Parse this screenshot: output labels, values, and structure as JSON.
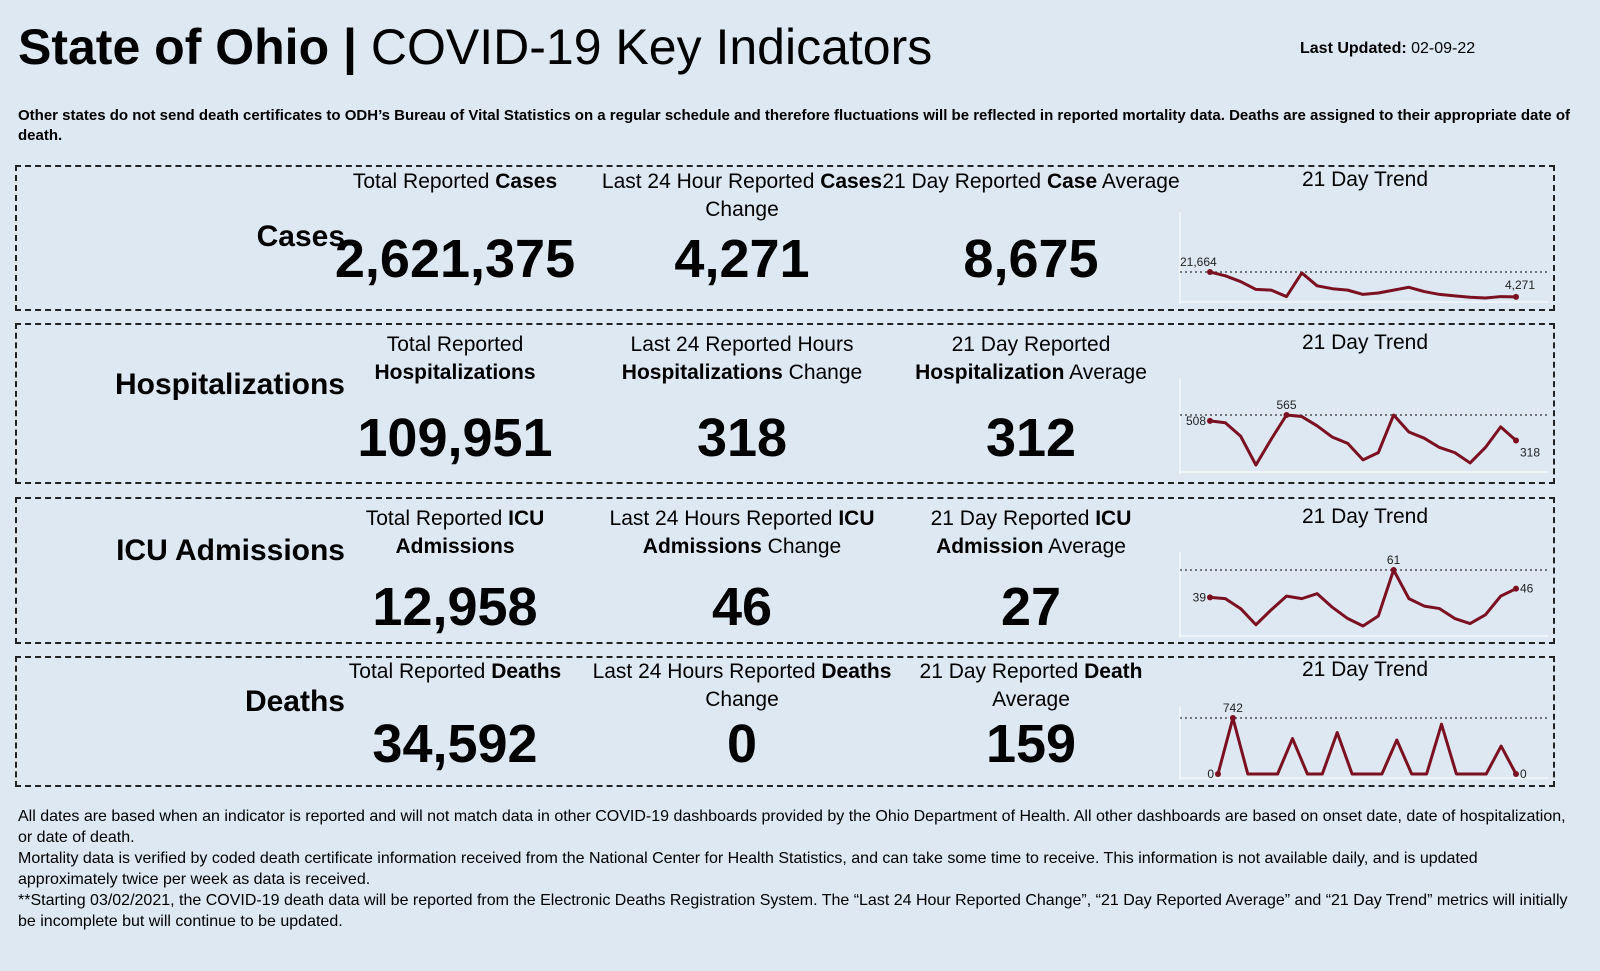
{
  "header": {
    "title_bold": "State of Ohio |",
    "title_rest": "COVID-19  Key Indicators",
    "updated_label": "Last Updated:",
    "updated_date": "02-09-22",
    "note": "Other states do not send death certificates to ODH’s Bureau of Vital Statistics on a regular schedule and therefore fluctuations will be reflected in reported mortality data. Deaths are assigned to their appropriate date of death."
  },
  "rows": [
    {
      "name": "Cases",
      "metrics": [
        {
          "label": [
            {
              "text": "Total Reported ",
              "bold": false
            },
            {
              "text": "Cases",
              "bold": true
            }
          ],
          "value": "2,621,375"
        },
        {
          "label": [
            {
              "text": "Last 24 Hour Reported ",
              "bold": false
            },
            {
              "text": "Cases",
              "bold": true
            },
            {
              "text": " Change",
              "bold": false
            }
          ],
          "value": "4,271"
        },
        {
          "label": [
            {
              "text": "21 Day Reported ",
              "bold": false
            },
            {
              "text": "Case",
              "bold": true
            },
            {
              "text": " Average",
              "bold": false
            }
          ],
          "value": "8,675"
        }
      ],
      "trend": {
        "title": "21 Day Trend",
        "color": "#7b1020",
        "values": [
          21664,
          19000,
          15000,
          9500,
          9000,
          4500,
          21000,
          12000,
          10000,
          9000,
          6000,
          7000,
          9000,
          11000,
          8000,
          6000,
          5000,
          4000,
          3500,
          4500,
          4271
        ],
        "value_labels": [
          "21,664",
          null,
          null,
          null,
          null,
          null,
          null,
          null,
          null,
          null,
          null,
          null,
          null,
          null,
          null,
          null,
          null,
          null,
          null,
          null,
          "4,271"
        ]
      }
    },
    {
      "name": "Hospitalizations",
      "metrics": [
        {
          "label": [
            {
              "text": "Total Reported ",
              "bold": false
            },
            {
              "text": "Hospitalizations",
              "bold": true
            }
          ],
          "value": "109,951"
        },
        {
          "label": [
            {
              "text": "Last 24 Reported Hours ",
              "bold": false
            },
            {
              "text": "Hospitalizations",
              "bold": true
            },
            {
              "text": " Change",
              "bold": false
            }
          ],
          "value": "318"
        },
        {
          "label": [
            {
              "text": "21 Day Reported ",
              "bold": false
            },
            {
              "text": "Hospitalization",
              "bold": true
            },
            {
              "text": " Average",
              "bold": false
            }
          ],
          "value": "312"
        }
      ],
      "trend": {
        "title": "21 Day Trend",
        "color": "#7b1020",
        "values": [
          508,
          490,
          360,
          80,
          330,
          565,
          550,
          460,
          350,
          290,
          130,
          200,
          565,
          400,
          340,
          250,
          200,
          100,
          250,
          450,
          318
        ],
        "value_labels": [
          "508",
          null,
          null,
          null,
          null,
          "565",
          null,
          null,
          null,
          null,
          null,
          null,
          null,
          null,
          null,
          null,
          null,
          null,
          null,
          null,
          "318"
        ]
      }
    },
    {
      "name": "ICU Admissions",
      "metrics": [
        {
          "label": [
            {
              "text": "Total Reported ",
              "bold": false
            },
            {
              "text": "ICU Admissions",
              "bold": true
            }
          ],
          "value": "12,958"
        },
        {
          "label": [
            {
              "text": "Last 24 Hours Reported ",
              "bold": false
            },
            {
              "text": "ICU Admissions",
              "bold": true
            },
            {
              "text": " Change",
              "bold": false
            }
          ],
          "value": "46"
        },
        {
          "label": [
            {
              "text": "21 Day Reported ",
              "bold": false
            },
            {
              "text": "ICU Admission",
              "bold": true
            },
            {
              "text": " Average",
              "bold": false
            }
          ],
          "value": "27"
        }
      ],
      "trend": {
        "title": "21 Day Trend",
        "color": "#7b1020",
        "values": [
          39,
          38,
          30,
          17,
          29,
          40,
          38,
          42,
          31,
          22,
          16,
          24,
          61,
          38,
          32,
          30,
          22,
          18,
          25,
          40,
          46
        ],
        "value_labels": [
          "39",
          null,
          null,
          null,
          null,
          null,
          null,
          null,
          null,
          null,
          null,
          null,
          "61",
          null,
          null,
          null,
          null,
          null,
          null,
          null,
          "46"
        ]
      }
    },
    {
      "name": "Deaths",
      "metrics": [
        {
          "label": [
            {
              "text": "Total Reported ",
              "bold": false
            },
            {
              "text": "Deaths",
              "bold": true
            }
          ],
          "value": "34,592"
        },
        {
          "label": [
            {
              "text": "Last 24 Hours Reported ",
              "bold": false
            },
            {
              "text": "Deaths",
              "bold": true
            },
            {
              "text": " Change",
              "bold": false
            }
          ],
          "value": "0"
        },
        {
          "label": [
            {
              "text": "21 Day Reported ",
              "bold": false
            },
            {
              "text": "Death",
              "bold": true
            },
            {
              "text": " Average",
              "bold": false
            }
          ],
          "value": "159"
        }
      ],
      "trend": {
        "title": "21 Day Trend",
        "color": "#7b1020",
        "values": [
          0,
          742,
          0,
          0,
          0,
          470,
          0,
          0,
          550,
          0,
          0,
          0,
          450,
          0,
          0,
          660,
          0,
          0,
          0,
          370,
          0
        ],
        "value_labels": [
          "0",
          "742",
          null,
          null,
          null,
          null,
          null,
          null,
          null,
          null,
          null,
          null,
          null,
          null,
          null,
          null,
          null,
          null,
          null,
          null,
          "0"
        ]
      }
    }
  ],
  "footer": [
    "All dates are based when an indicator is reported and will not match data in other COVID-19 dashboards provided by the Ohio Department of Health. All other dashboards are based on onset date, date of hospitalization, or date of death.",
    "Mortality data is verified by coded death certificate information received from the National Center for Health Statistics, and can take some time to receive. This information is not available daily, and is updated approximately twice per week as data is received.",
    "**Starting 03/02/2021, the COVID-19 death data will be reported from the Electronic Deaths Registration System. The “Last 24 Hour Reported Change”, “21 Day Reported Average” and “21 Day Trend” metrics will initially be incomplete but will continue to be updated."
  ]
}
